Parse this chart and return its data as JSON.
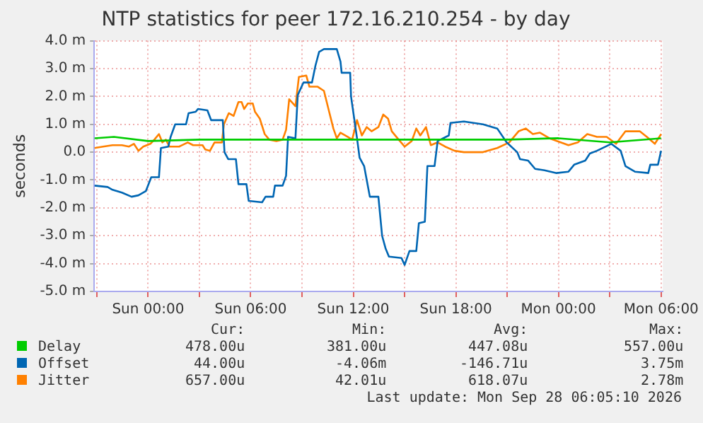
{
  "chart_data": {
    "type": "line",
    "title": "NTP statistics for peer 172.16.210.254 - by day",
    "ylabel": "seconds",
    "xlim": [
      "2026-09-26T20:51",
      "2026-09-28T06:06"
    ],
    "xticks": [
      {
        "value": "2026-09-26T21:00",
        "label": null
      },
      {
        "value": "2026-09-27T00:00",
        "label": "Sun 00:00"
      },
      {
        "value": "2026-09-27T03:00",
        "label": null
      },
      {
        "value": "2026-09-27T06:00",
        "label": "Sun 06:00"
      },
      {
        "value": "2026-09-27T09:00",
        "label": null
      },
      {
        "value": "2026-09-27T12:00",
        "label": "Sun 12:00"
      },
      {
        "value": "2026-09-27T15:00",
        "label": null
      },
      {
        "value": "2026-09-27T18:00",
        "label": "Sun 18:00"
      },
      {
        "value": "2026-09-27T21:00",
        "label": null
      },
      {
        "value": "2026-09-28T00:00",
        "label": "Mon 00:00"
      },
      {
        "value": "2026-09-28T03:00",
        "label": null
      },
      {
        "value": "2026-09-28T06:00",
        "label": "Mon 06:00"
      }
    ],
    "ylim": [
      -5,
      4
    ],
    "yticks": [
      {
        "value": -5,
        "label": "-5.0 m"
      },
      {
        "value": -4,
        "label": "-4.0 m"
      },
      {
        "value": -3,
        "label": "-3.0 m"
      },
      {
        "value": -2,
        "label": "-2.0 m"
      },
      {
        "value": -1,
        "label": "-1.0 m"
      },
      {
        "value": 0,
        "label": "0.0"
      },
      {
        "value": 1,
        "label": "1.0 m"
      },
      {
        "value": 2,
        "label": "2.0 m"
      },
      {
        "value": 3,
        "label": "3.0 m"
      },
      {
        "value": 4,
        "label": "4.0 m"
      }
    ],
    "grid": true,
    "legend": "bottom",
    "marker": "none",
    "line_style": "solid",
    "series": [
      {
        "name": "Delay",
        "color": "#00cc00",
        "x": [
          "2026-09-26T20:52",
          "2026-09-26T22:00",
          "2026-09-27T00:00",
          "2026-09-27T03:00",
          "2026-09-27T06:00",
          "2026-09-27T09:00",
          "2026-09-27T12:00",
          "2026-09-27T15:00",
          "2026-09-27T18:00",
          "2026-09-27T21:00",
          "2026-09-28T00:00",
          "2026-09-28T03:00",
          "2026-09-28T06:00"
        ],
        "values": [
          0.5,
          0.55,
          0.4,
          0.45,
          0.45,
          0.45,
          0.45,
          0.45,
          0.45,
          0.45,
          0.5,
          0.35,
          0.5
        ]
      },
      {
        "name": "Offset",
        "color": "#0066b3",
        "x": [
          "2026-09-26T20:52",
          "2026-09-26T21:38",
          "2026-09-26T21:55",
          "2026-09-26T22:28",
          "2026-09-26T23:02",
          "2026-09-26T23:26",
          "2026-09-26T23:52",
          "2026-09-27T00:11",
          "2026-09-27T00:38",
          "2026-09-27T00:45",
          "2026-09-27T01:11",
          "2026-09-27T01:19",
          "2026-09-27T01:35",
          "2026-09-27T02:13",
          "2026-09-27T02:22",
          "2026-09-27T02:47",
          "2026-09-27T02:55",
          "2026-09-27T03:28",
          "2026-09-27T03:41",
          "2026-09-27T04:22",
          "2026-09-27T04:28",
          "2026-09-27T04:41",
          "2026-09-27T05:08",
          "2026-09-27T05:17",
          "2026-09-27T05:45",
          "2026-09-27T05:53",
          "2026-09-27T06:40",
          "2026-09-27T06:52",
          "2026-09-27T07:19",
          "2026-09-27T07:25",
          "2026-09-27T07:52",
          "2026-09-27T08:04",
          "2026-09-27T08:11",
          "2026-09-27T08:37",
          "2026-09-27T08:45",
          "2026-09-27T09:05",
          "2026-09-27T09:35",
          "2026-09-27T09:47",
          "2026-09-27T10:00",
          "2026-09-27T10:17",
          "2026-09-27T11:02",
          "2026-09-27T11:15",
          "2026-09-27T11:19",
          "2026-09-27T11:49",
          "2026-09-27T11:52",
          "2026-09-27T12:13",
          "2026-09-27T12:22",
          "2026-09-27T12:38",
          "2026-09-27T12:58",
          "2026-09-27T13:28",
          "2026-09-27T13:41",
          "2026-09-27T13:53",
          "2026-09-27T14:05",
          "2026-09-27T14:49",
          "2026-09-27T15:00",
          "2026-09-27T15:17",
          "2026-09-27T15:41",
          "2026-09-27T15:50",
          "2026-09-27T16:11",
          "2026-09-27T16:20",
          "2026-09-27T16:45",
          "2026-09-27T16:56",
          "2026-09-27T17:35",
          "2026-09-27T17:41",
          "2026-09-27T18:28",
          "2026-09-27T19:35",
          "2026-09-27T20:25",
          "2026-09-27T20:58",
          "2026-09-27T21:35",
          "2026-09-27T21:45",
          "2026-09-27T22:13",
          "2026-09-27T22:38",
          "2026-09-27T23:11",
          "2026-09-27T23:53",
          "2026-09-28T00:35",
          "2026-09-28T00:55",
          "2026-09-28T01:34",
          "2026-09-28T01:50",
          "2026-09-28T02:15",
          "2026-09-28T03:05",
          "2026-09-28T03:38",
          "2026-09-28T03:55",
          "2026-09-28T04:28",
          "2026-09-28T05:15",
          "2026-09-28T05:22",
          "2026-09-28T05:49",
          "2026-09-28T06:00"
        ],
        "values": [
          -1.2,
          -1.25,
          -1.35,
          -1.45,
          -1.6,
          -1.55,
          -1.4,
          -0.9,
          -0.9,
          0.15,
          0.2,
          0.55,
          1,
          1,
          1.4,
          1.45,
          1.55,
          1.5,
          1.15,
          1.15,
          0,
          -0.25,
          -0.25,
          -1.15,
          -1.15,
          -1.75,
          -1.8,
          -1.6,
          -1.6,
          -1.2,
          -1.2,
          -0.85,
          0.55,
          0.5,
          2.05,
          2.5,
          2.5,
          3.1,
          3.6,
          3.7,
          3.7,
          3.25,
          2.85,
          2.85,
          2,
          0.5,
          -0.2,
          -0.5,
          -1.6,
          -1.6,
          -3,
          -3.45,
          -3.75,
          -3.8,
          -4.05,
          -3.55,
          -3.55,
          -2.55,
          -2.5,
          -0.5,
          -0.5,
          0.4,
          0.6,
          1.05,
          1.1,
          1,
          0.85,
          0.35,
          0,
          -0.25,
          -0.3,
          -0.6,
          -0.65,
          -0.75,
          -0.7,
          -0.45,
          -0.3,
          -0.05,
          0.05,
          0.3,
          0.05,
          -0.5,
          -0.7,
          -0.75,
          -0.45,
          -0.45,
          0.05
        ]
      },
      {
        "name": "Jitter",
        "color": "#ff8000",
        "x": [
          "2026-09-26T20:52",
          "2026-09-26T21:22",
          "2026-09-26T21:55",
          "2026-09-26T22:28",
          "2026-09-26T22:53",
          "2026-09-26T23:10",
          "2026-09-26T23:26",
          "2026-09-26T23:43",
          "2026-09-27T00:08",
          "2026-09-27T00:22",
          "2026-09-27T00:38",
          "2026-09-27T00:50",
          "2026-09-27T01:02",
          "2026-09-27T01:15",
          "2026-09-27T01:49",
          "2026-09-27T02:19",
          "2026-09-27T02:38",
          "2026-09-27T03:11",
          "2026-09-27T03:20",
          "2026-09-27T03:37",
          "2026-09-27T03:53",
          "2026-09-27T04:19",
          "2026-09-27T04:26",
          "2026-09-27T04:43",
          "2026-09-27T05:00",
          "2026-09-27T05:17",
          "2026-09-27T05:28",
          "2026-09-27T05:37",
          "2026-09-27T05:50",
          "2026-09-27T06:07",
          "2026-09-27T06:15",
          "2026-09-27T06:32",
          "2026-09-27T06:49",
          "2026-09-27T07:05",
          "2026-09-27T07:30",
          "2026-09-27T07:52",
          "2026-09-27T08:04",
          "2026-09-27T08:15",
          "2026-09-27T08:28",
          "2026-09-27T08:37",
          "2026-09-27T08:49",
          "2026-09-27T09:15",
          "2026-09-27T09:26",
          "2026-09-27T09:55",
          "2026-09-27T10:17",
          "2026-09-27T10:34",
          "2026-09-27T10:50",
          "2026-09-27T11:02",
          "2026-09-27T11:15",
          "2026-09-27T11:40",
          "2026-09-27T11:56",
          "2026-09-27T12:13",
          "2026-09-27T12:30",
          "2026-09-27T12:47",
          "2026-09-27T13:04",
          "2026-09-27T13:28",
          "2026-09-27T13:45",
          "2026-09-27T14:02",
          "2026-09-27T14:15",
          "2026-09-27T14:35",
          "2026-09-27T15:00",
          "2026-09-27T15:25",
          "2026-09-27T15:41",
          "2026-09-27T15:55",
          "2026-09-27T16:15",
          "2026-09-27T16:32",
          "2026-09-27T16:56",
          "2026-09-27T17:22",
          "2026-09-27T17:55",
          "2026-09-27T18:28",
          "2026-09-27T19:35",
          "2026-09-27T20:25",
          "2026-09-27T21:07",
          "2026-09-27T21:40",
          "2026-09-27T22:05",
          "2026-09-27T22:30",
          "2026-09-27T22:55",
          "2026-09-27T23:28",
          "2026-09-28T00:35",
          "2026-09-28T01:08",
          "2026-09-28T01:41",
          "2026-09-28T02:15",
          "2026-09-28T02:49",
          "2026-09-28T03:22",
          "2026-09-28T03:55",
          "2026-09-28T04:45",
          "2026-09-28T05:10",
          "2026-09-28T05:38",
          "2026-09-28T06:00"
        ],
        "values": [
          0.15,
          0.2,
          0.25,
          0.25,
          0.2,
          0.3,
          0.05,
          0.2,
          0.3,
          0.45,
          0.65,
          0.35,
          0.45,
          0.2,
          0.2,
          0.35,
          0.25,
          0.25,
          0.1,
          0.05,
          0.35,
          0.35,
          1,
          1.4,
          1.3,
          1.8,
          1.8,
          1.55,
          1.75,
          1.75,
          1.45,
          1.2,
          0.65,
          0.45,
          0.4,
          0.45,
          0.8,
          1.9,
          1.75,
          1.65,
          2.7,
          2.75,
          2.35,
          2.35,
          2.2,
          1.5,
          0.85,
          0.5,
          0.7,
          0.55,
          0.45,
          1.15,
          0.6,
          0.9,
          0.75,
          0.9,
          1.35,
          1.2,
          0.75,
          0.5,
          0.2,
          0.4,
          0.85,
          0.6,
          0.9,
          0.25,
          0.35,
          0.2,
          0.05,
          0,
          0,
          0.15,
          0.35,
          0.75,
          0.85,
          0.65,
          0.7,
          0.5,
          0.25,
          0.35,
          0.65,
          0.55,
          0.55,
          0.3,
          0.75,
          0.75,
          0.55,
          0.3,
          0.65
        ]
      }
    ],
    "annotations": [
      "Cur:",
      "Min:",
      "Avg:",
      "Max:",
      "478.00u",
      "381.00u",
      "447.08u",
      "557.00u",
      "44.00u",
      "-4.06m",
      "-146.71u",
      "3.75m",
      "657.00u",
      "42.01u",
      "618.07u",
      "2.78m",
      "Last update: Mon Sep 28 06:05:10 2026"
    ]
  }
}
